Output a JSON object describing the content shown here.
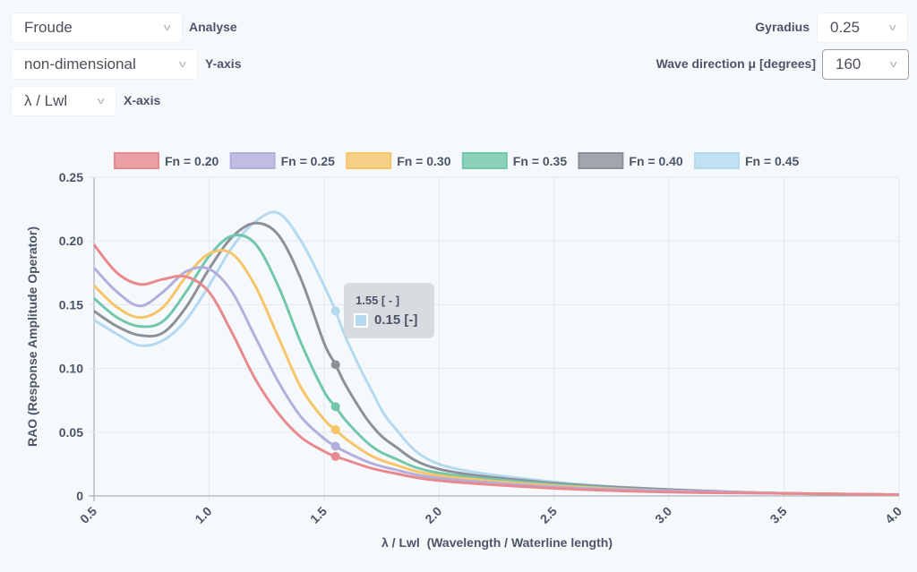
{
  "controls": {
    "analyse": {
      "value": "Froude",
      "label": "Analyse"
    },
    "yaxis": {
      "value": "non-dimensional",
      "label": "Y-axis"
    },
    "xaxis": {
      "value": "λ / Lwl",
      "label": "X-axis"
    },
    "gyradius": {
      "value": "0.25",
      "label": "Gyradius"
    },
    "wave_direction": {
      "value": "160",
      "label": "Wave direction μ [degrees]"
    }
  },
  "tooltip": {
    "title": "1.55 [ - ]",
    "value": "0.15 [-]",
    "color": "#b5d9f0"
  },
  "chart_data": {
    "type": "line",
    "xlabel": "λ / Lwl  (Wavelength / Waterline length)",
    "ylabel": "RAO  (Response Amplitude Operator)",
    "xlim": [
      0.5,
      4.0
    ],
    "ylim": [
      0,
      0.25
    ],
    "xticks": [
      "0.5",
      "1.0",
      "1.5",
      "2.0",
      "2.5",
      "3.0",
      "3.5",
      "4.0"
    ],
    "yticks": [
      "0",
      "0.05",
      "0.10",
      "0.15",
      "0.20",
      "0.25"
    ],
    "grid": true,
    "legend": "top",
    "highlight_x": 1.55,
    "x": [
      0.5,
      0.6,
      0.7,
      0.8,
      0.9,
      1.0,
      1.1,
      1.2,
      1.3,
      1.4,
      1.5,
      1.55,
      1.6,
      1.7,
      1.8,
      2.0,
      2.5,
      3.0,
      3.5,
      4.0
    ],
    "series": [
      {
        "name": "Fn = 0.20",
        "color": "#e8898f",
        "values": [
          0.197,
          0.175,
          0.166,
          0.17,
          0.172,
          0.16,
          0.128,
          0.092,
          0.065,
          0.046,
          0.035,
          0.031,
          0.028,
          0.022,
          0.018,
          0.012,
          0.006,
          0.003,
          0.002,
          0.001
        ]
      },
      {
        "name": "Fn = 0.25",
        "color": "#b4aedc",
        "values": [
          0.179,
          0.16,
          0.149,
          0.16,
          0.176,
          0.178,
          0.16,
          0.125,
          0.09,
          0.062,
          0.045,
          0.039,
          0.034,
          0.026,
          0.021,
          0.014,
          0.007,
          0.004,
          0.002,
          0.001
        ]
      },
      {
        "name": "Fn = 0.30",
        "color": "#f7c468",
        "values": [
          0.165,
          0.148,
          0.14,
          0.148,
          0.172,
          0.19,
          0.19,
          0.165,
          0.125,
          0.085,
          0.06,
          0.052,
          0.044,
          0.032,
          0.025,
          0.016,
          0.008,
          0.004,
          0.002,
          0.001
        ]
      },
      {
        "name": "Fn = 0.35",
        "color": "#72c7aa",
        "values": [
          0.155,
          0.14,
          0.133,
          0.137,
          0.16,
          0.188,
          0.204,
          0.198,
          0.165,
          0.12,
          0.082,
          0.07,
          0.058,
          0.04,
          0.03,
          0.018,
          0.009,
          0.004,
          0.002,
          0.001
        ]
      },
      {
        "name": "Fn = 0.40",
        "color": "#8d9099",
        "values": [
          0.145,
          0.133,
          0.126,
          0.128,
          0.148,
          0.178,
          0.203,
          0.214,
          0.205,
          0.17,
          0.12,
          0.103,
          0.085,
          0.057,
          0.04,
          0.021,
          0.01,
          0.005,
          0.002,
          0.001
        ]
      },
      {
        "name": "Fn = 0.45",
        "color": "#b5d9f0",
        "values": [
          0.138,
          0.127,
          0.118,
          0.122,
          0.138,
          0.165,
          0.195,
          0.215,
          0.222,
          0.2,
          0.165,
          0.145,
          0.122,
          0.085,
          0.055,
          0.025,
          0.011,
          0.005,
          0.002,
          0.001
        ]
      }
    ]
  }
}
